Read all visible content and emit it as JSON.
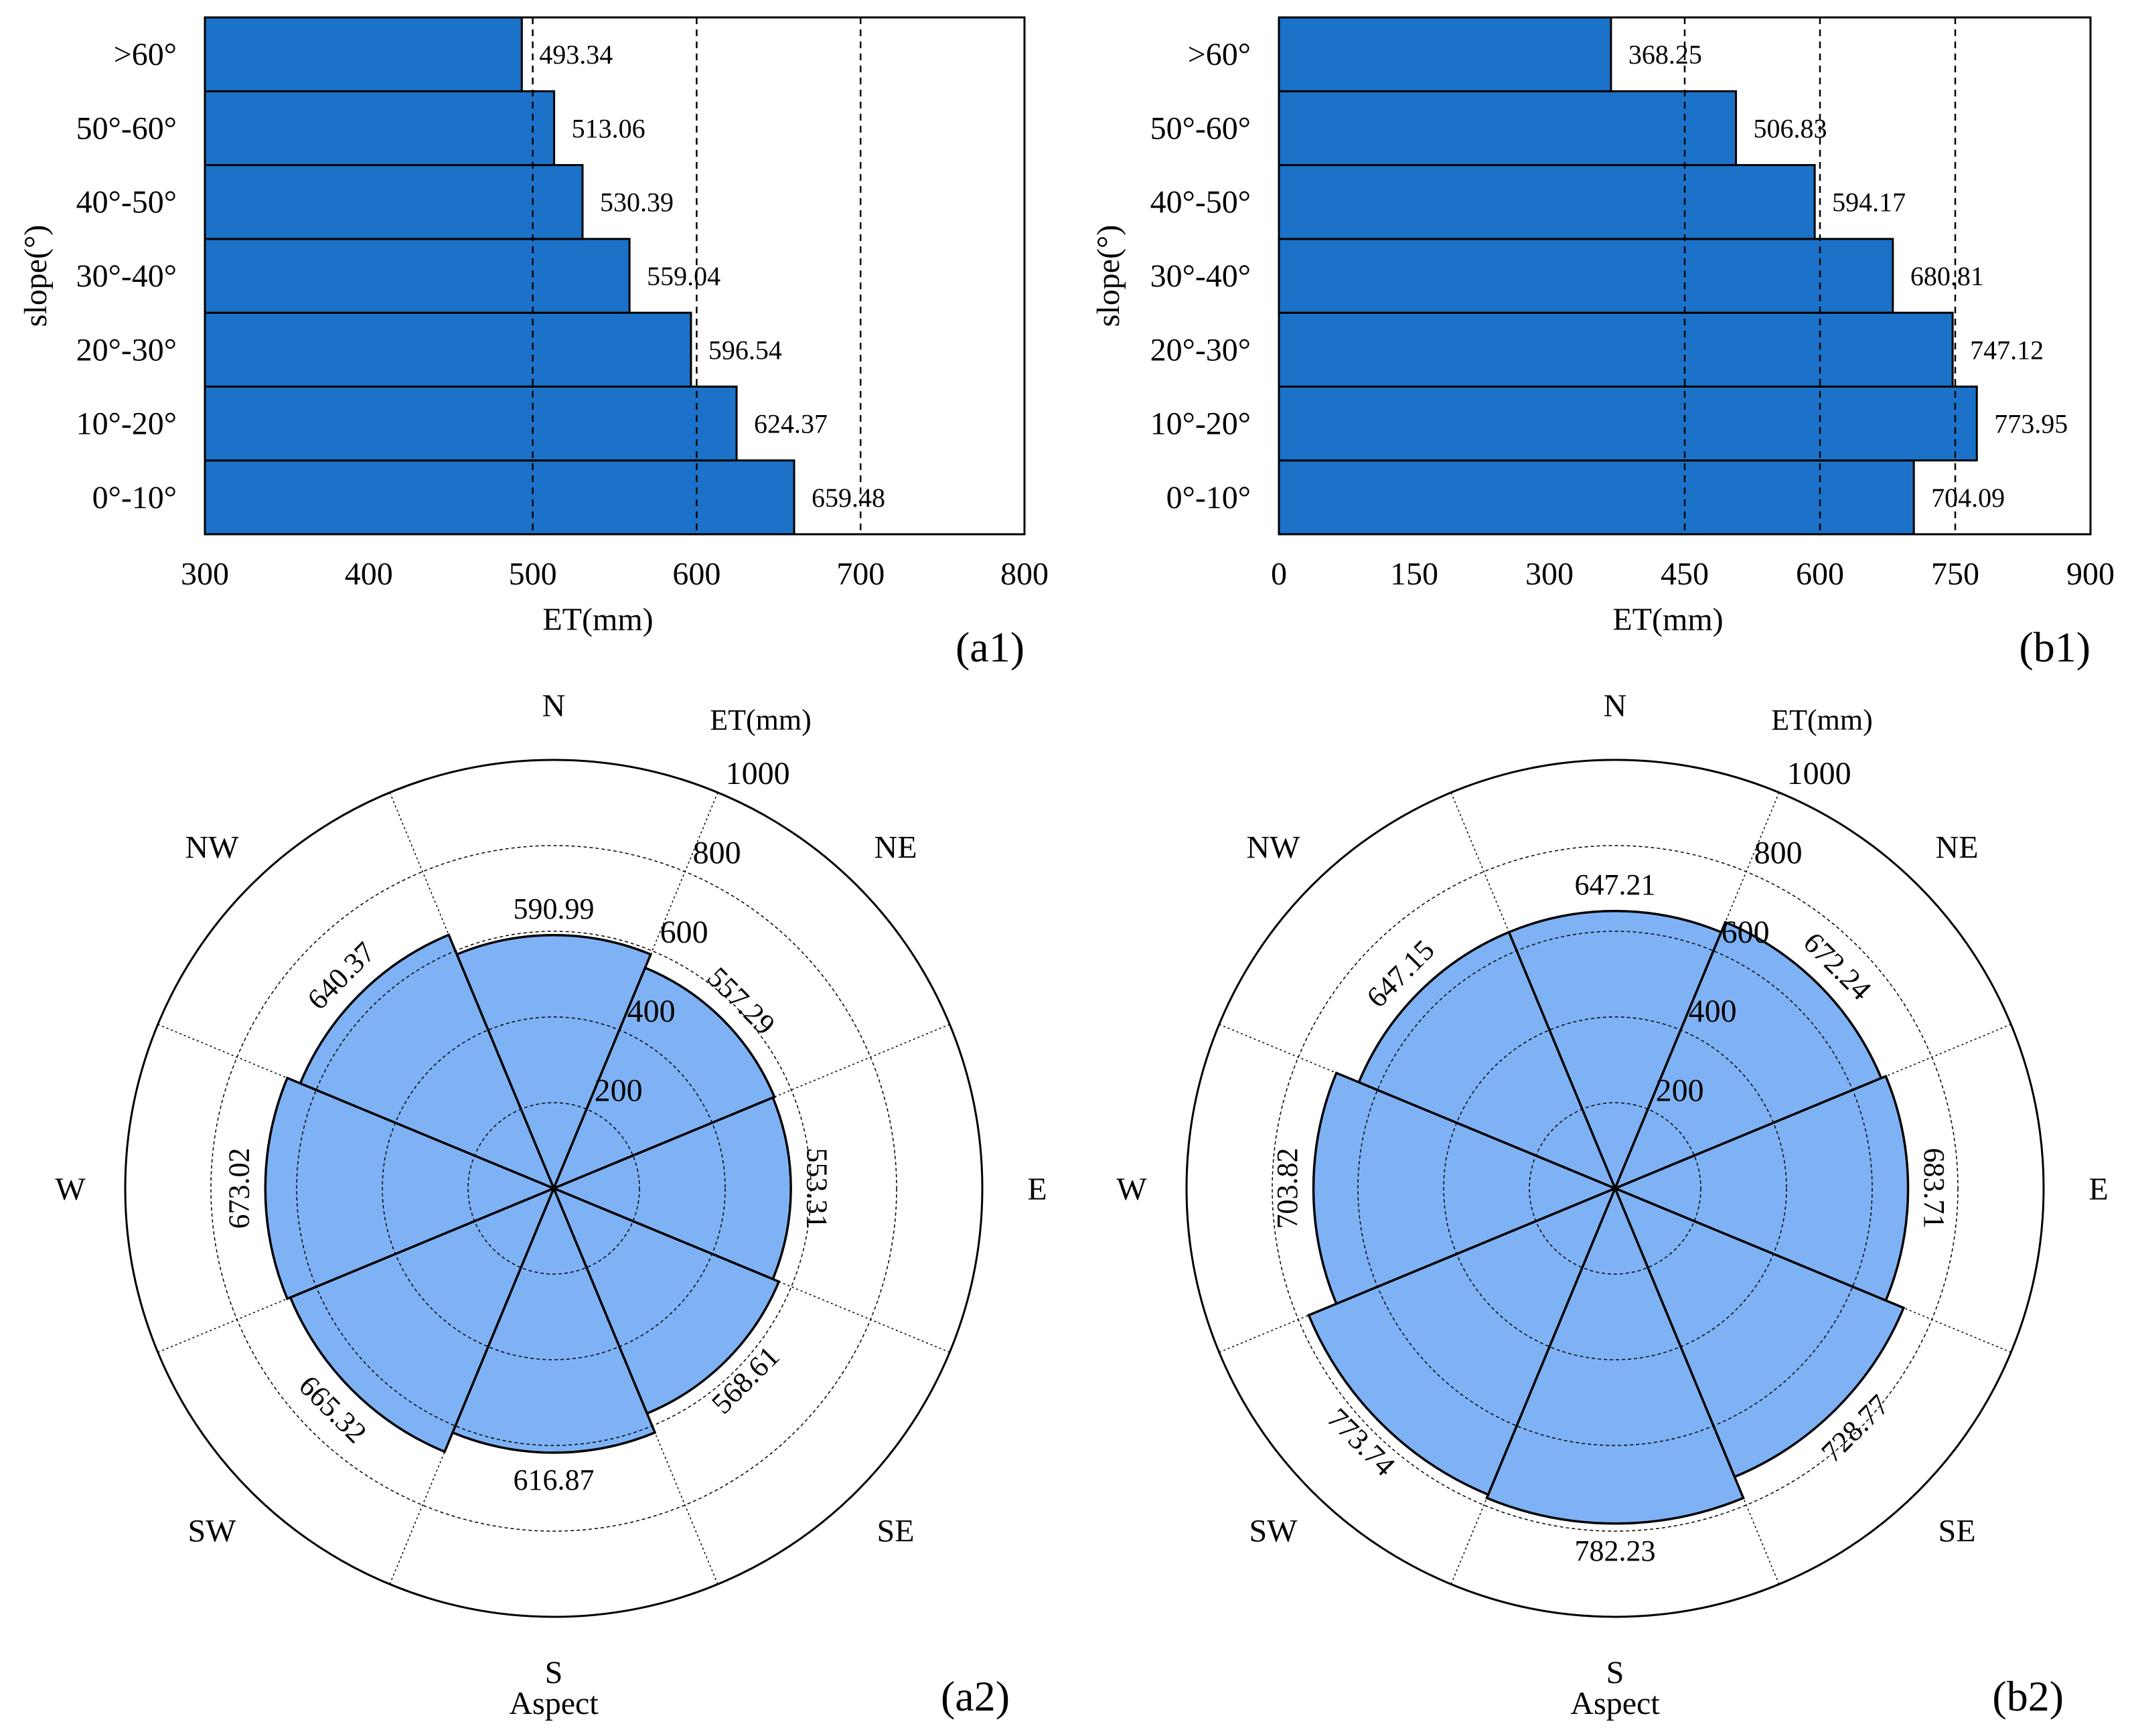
{
  "colors": {
    "bar": "#1b72c8",
    "polar": "#7fb2f4",
    "stroke": "#000000",
    "background": "#ffffff"
  },
  "chart_data": [
    {
      "id": "a1",
      "type": "bar",
      "orientation": "horizontal",
      "panel_label": "(a1)",
      "categories": [
        "0°-10°",
        "10°-20°",
        "20°-30°",
        "30°-40°",
        "40°-50°",
        "50°-60°",
        ">60°"
      ],
      "values": [
        659.48,
        624.37,
        596.54,
        559.04,
        530.39,
        513.06,
        493.34
      ],
      "value_labels": [
        "659.48",
        "624.37",
        "596.54",
        "559.04",
        "530.39",
        "513.06",
        "493.34"
      ],
      "xlabel": "ET(mm)",
      "ylabel": "slope(°)",
      "xlim": [
        300,
        800
      ],
      "xticks": [
        300,
        400,
        500,
        600,
        700,
        800
      ],
      "ref_lines": [
        500,
        600,
        700
      ]
    },
    {
      "id": "b1",
      "type": "bar",
      "orientation": "horizontal",
      "panel_label": "(b1)",
      "categories": [
        "0°-10°",
        "10°-20°",
        "20°-30°",
        "30°-40°",
        "40°-50°",
        "50°-60°",
        ">60°"
      ],
      "values": [
        704.09,
        773.95,
        747.12,
        680.81,
        594.17,
        506.83,
        368.25
      ],
      "value_labels": [
        "704.09",
        "773.95",
        "747.12",
        "680.81",
        "594.17",
        "506.83",
        "368.25"
      ],
      "xlabel": "ET(mm)",
      "ylabel": "slope(°)",
      "xlim": [
        0,
        900
      ],
      "xticks": [
        0,
        150,
        300,
        450,
        600,
        750,
        900
      ],
      "ref_lines": [
        450,
        600,
        750
      ]
    },
    {
      "id": "a2",
      "type": "polar-bar",
      "panel_label": "(a2)",
      "directions": [
        "N",
        "NE",
        "E",
        "SE",
        "S",
        "SW",
        "W",
        "NW"
      ],
      "values": [
        590.99,
        557.29,
        553.31,
        568.61,
        616.87,
        665.32,
        673.02,
        640.37
      ],
      "value_labels": [
        "590.99",
        "557.29",
        "553.31",
        "568.61",
        "616.87",
        "665.32",
        "673.02",
        "640.37"
      ],
      "rlim": [
        0,
        1000
      ],
      "rticks": [
        200,
        400,
        600,
        800,
        1000
      ],
      "rlabel": "ET(mm)",
      "xlabel": "Aspect"
    },
    {
      "id": "b2",
      "type": "polar-bar",
      "panel_label": "(b2)",
      "directions": [
        "N",
        "NE",
        "E",
        "SE",
        "S",
        "SW",
        "W",
        "NW"
      ],
      "values": [
        647.21,
        672.24,
        683.71,
        728.77,
        782.23,
        773.74,
        703.82,
        647.15
      ],
      "value_labels": [
        "647.21",
        "672.24",
        "683.71",
        "728.77",
        "782.23",
        "773.74",
        "703.82",
        "647.15"
      ],
      "rlim": [
        0,
        1000
      ],
      "rticks": [
        200,
        400,
        600,
        800,
        1000
      ],
      "rlabel": "ET(mm)",
      "xlabel": "Aspect"
    }
  ]
}
